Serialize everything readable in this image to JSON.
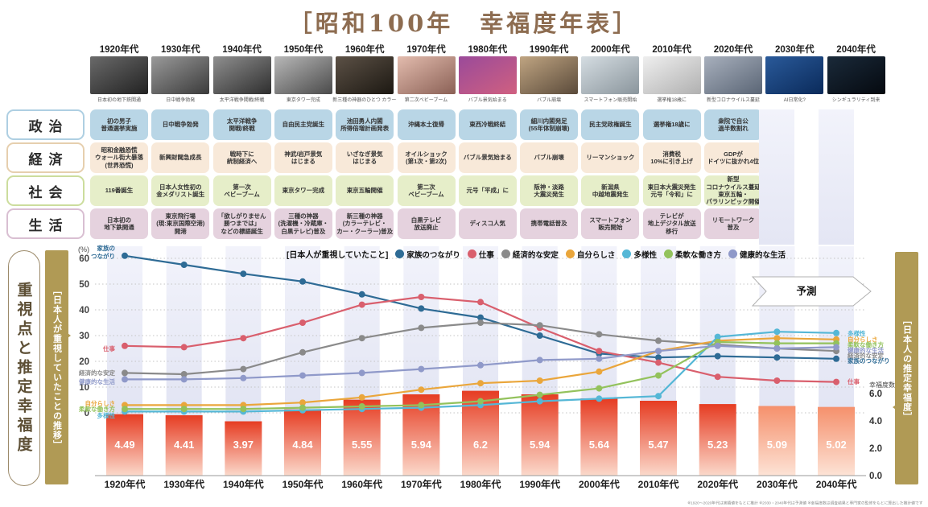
{
  "title": "［昭和100年　幸福度年表］",
  "decades": [
    "1920年代",
    "1930年代",
    "1940年代",
    "1950年代",
    "1960年代",
    "1970年代",
    "1980年代",
    "1990年代",
    "2000年代",
    "2010年代",
    "2020年代",
    "2030年代",
    "2040年代"
  ],
  "photos": [
    {
      "caption": "日本初の地下鉄開通",
      "g1": "#6a6a6a",
      "g2": "#222222"
    },
    {
      "caption": "日中戦争勃発",
      "g1": "#9a9a9a",
      "g2": "#3a3a3a"
    },
    {
      "caption": "太平洋戦争開戦/終戦",
      "g1": "#8f8f8f",
      "g2": "#2e2e2e"
    },
    {
      "caption": "東京タワー完成",
      "g1": "#b8b8b8",
      "g2": "#4a4a4a"
    },
    {
      "caption": "新三種の神器のひとつ カラーテレビ",
      "g1": "#5c5146",
      "g2": "#1c1812"
    },
    {
      "caption": "第二次ベビーブーム",
      "g1": "#e3bcae",
      "g2": "#8a6055"
    },
    {
      "caption": "バブル景気始まる",
      "g1": "#9a4a9a",
      "g2": "#d06080"
    },
    {
      "caption": "バブル崩壊",
      "g1": "#c0a582",
      "g2": "#5a4a3a"
    },
    {
      "caption": "スマートフォン販売開始",
      "g1": "#d5dde2",
      "g2": "#8a959c"
    },
    {
      "caption": "選挙権18歳に",
      "g1": "#efefef",
      "g2": "#b0b0b0"
    },
    {
      "caption": "新型コロナウイルス蔓延",
      "g1": "#a8b0bd",
      "g2": "#5a6575"
    },
    {
      "caption": "AI日常化?",
      "g1": "#2a5a9a",
      "g2": "#0a2a5a"
    },
    {
      "caption": "シンギュラリティ到来",
      "g1": "#1a2a3a",
      "g2": "#05090f"
    }
  ],
  "rows": [
    {
      "label": "政治",
      "cell_bg": "#b9d6e6",
      "border": "#aecfe2",
      "items": [
        "初の男子\n普通選挙実施",
        "日中戦争勃発",
        "太平洋戦争\n開戦/終戦",
        "自由民主党誕生",
        "池田勇人内閣\n所得倍増計画発表",
        "沖縄本土復帰",
        "東西冷戦終結",
        "細川内閣発足\n(55年体制崩壊)",
        "民主党政権誕生",
        "選挙権18歳に",
        "衆院で自公\n過半数割れ",
        "",
        ""
      ]
    },
    {
      "label": "経済",
      "cell_bg": "#f8e9d9",
      "border": "#e6cfae",
      "items": [
        "昭和金融恐慌\nウォール街大暴落\n(世界恐慌)",
        "新興財閥急成長",
        "戦時下に\n統制経済へ",
        "神武/岩戸景気\nはじまる",
        "いざなぎ景気\nはじまる",
        "オイルショック\n(第1次・第2次)",
        "バブル景気始まる",
        "バブル崩壊",
        "リーマンショック",
        "消費税\n10%に引き上げ",
        "GDPが\nドイツに抜かれ4位",
        "",
        ""
      ]
    },
    {
      "label": "社会",
      "cell_bg": "#e6eec9",
      "border": "#ccdd9d",
      "items": [
        "119番誕生",
        "日本人女性初の\n金メダリスト誕生",
        "第一次\nベビーブーム",
        "東京タワー完成",
        "東京五輪開催",
        "第二次\nベビーブーム",
        "元号「平成」に",
        "阪神・淡路\n大震災発生",
        "新潟県\n中越地震発生",
        "東日本大震災発生\n元号「令和」に",
        "新型\nコロナウイルス蔓延\n東京五輪・\nパラリンピック開催",
        "",
        ""
      ]
    },
    {
      "label": "生活",
      "cell_bg": "#e5d2de",
      "border": "#d9bfd2",
      "items": [
        "日本初の\n地下鉄開通",
        "東京飛行場\n(現:東京国際空港)\n開港",
        "「欲しがりません\n勝つまでは」\nなどの標語誕生",
        "三種の神器\n(洗濯機・冷蔵庫・\n白黒テレビ)普及",
        "新三種の神器\n(カラーテレビ・\nカー・クーラー)普及",
        "白黒テレビ\n放送廃止",
        "ディスコ人気",
        "携帯電話普及",
        "スマートフォン\n販売開始",
        "テレビが\n地上デジタル放送\n移行",
        "リモートワーク\n普及",
        "",
        ""
      ]
    }
  ],
  "chart": {
    "left_panel_title": "重視点と推定幸福度",
    "left_banner": "［日本人が重視していたことの推移］",
    "right_banner": "［日本人の推定幸福度］",
    "legend_title": "[日本人が重視していたこと]",
    "forecast_label": "予測",
    "pct_label": "(%)",
    "y_left_ticks": [
      60,
      50,
      40,
      30,
      20,
      10,
      0
    ],
    "y_right_axis_label": "幸福度数",
    "y_right_ticks": [
      "6.0",
      "4.0",
      "2.0",
      "0.0"
    ],
    "footnote": "※1920〜2020年代は実績値をもとに推計 ※2030・2040年代は予測値 ※幸福度数は調査結果と専門家の監修をもとに算出した推計値です"
  },
  "chart_data": {
    "type": "line",
    "categories": [
      "1920年代",
      "1930年代",
      "1940年代",
      "1950年代",
      "1960年代",
      "1970年代",
      "1980年代",
      "1990年代",
      "2000年代",
      "2010年代",
      "2020年代",
      "2030年代",
      "2040年代"
    ],
    "title": "重視点と推定幸福度",
    "ylabel_left": "(%)",
    "ylim_left": [
      0,
      65
    ],
    "ylabel_right": "幸福度数",
    "ylim_right": [
      0,
      6.5
    ],
    "grid": true,
    "legend_position": "top",
    "forecast_categories": [
      "2030年代",
      "2040年代"
    ],
    "series": [
      {
        "name": "家族のつながり",
        "color": "#2e6b95",
        "start_label": [
          "家族の",
          "つながり"
        ],
        "values": [
          61,
          57.5,
          54,
          51,
          46,
          40.5,
          37,
          30,
          23,
          21.5,
          22,
          21.5,
          21
        ]
      },
      {
        "name": "仕事",
        "color": "#d95f6d",
        "start_label": [
          "仕事"
        ],
        "values": [
          26,
          25.5,
          29,
          35,
          42,
          45,
          43,
          33,
          24,
          19.5,
          14,
          12.5,
          12
        ]
      },
      {
        "name": "経済的な安定",
        "color": "#8a8a8a",
        "start_label": [
          "経済的な安定"
        ],
        "values": [
          15.5,
          15,
          17,
          23.5,
          29,
          33,
          35,
          34,
          30.5,
          28,
          26.5,
          25,
          24
        ]
      },
      {
        "name": "自分らしさ",
        "color": "#eaa63b",
        "start_label": [
          "自分らしさ"
        ],
        "values": [
          3,
          3,
          3,
          4,
          6,
          9,
          11.5,
          12.5,
          16,
          24,
          28,
          29,
          28.5
        ]
      },
      {
        "name": "多様性",
        "color": "#55b7d6",
        "start_label": [
          "多様性"
        ],
        "values": [
          0.5,
          0.5,
          0.5,
          1,
          1.5,
          2,
          3,
          4.5,
          5.5,
          6.5,
          29.5,
          31.5,
          31
        ]
      },
      {
        "name": "柔軟な働き方",
        "color": "#93c25c",
        "start_label": [
          "柔軟な働き方"
        ],
        "values": [
          1.5,
          1.5,
          1.5,
          2,
          2.5,
          3,
          4.5,
          7,
          9.5,
          14.5,
          27.5,
          27,
          27
        ]
      },
      {
        "name": "健康的な生活",
        "color": "#8f99c9",
        "start_label": [
          "健康的な生活"
        ],
        "values": [
          13,
          13,
          13.5,
          14.5,
          15.5,
          17,
          18.5,
          20.5,
          21,
          24,
          26,
          25,
          25.5
        ]
      }
    ],
    "bars": {
      "name": "幸福度数",
      "values": [
        4.49,
        4.41,
        3.97,
        4.84,
        5.55,
        5.94,
        6.2,
        5.94,
        5.64,
        5.47,
        5.23,
        5.09,
        5.02
      ],
      "value_labels": [
        "4.49",
        "4.41",
        "3.97",
        "4.84",
        "5.55",
        "5.94",
        "6.2",
        "5.94",
        "5.64",
        "5.47",
        "5.23",
        "5.09",
        "5.02"
      ],
      "color_top": "#e63c22",
      "color_bottom": "#fbd9cb",
      "forecast_color_top": "#f5906c",
      "forecast_color_bottom": "#fde3d6"
    }
  }
}
